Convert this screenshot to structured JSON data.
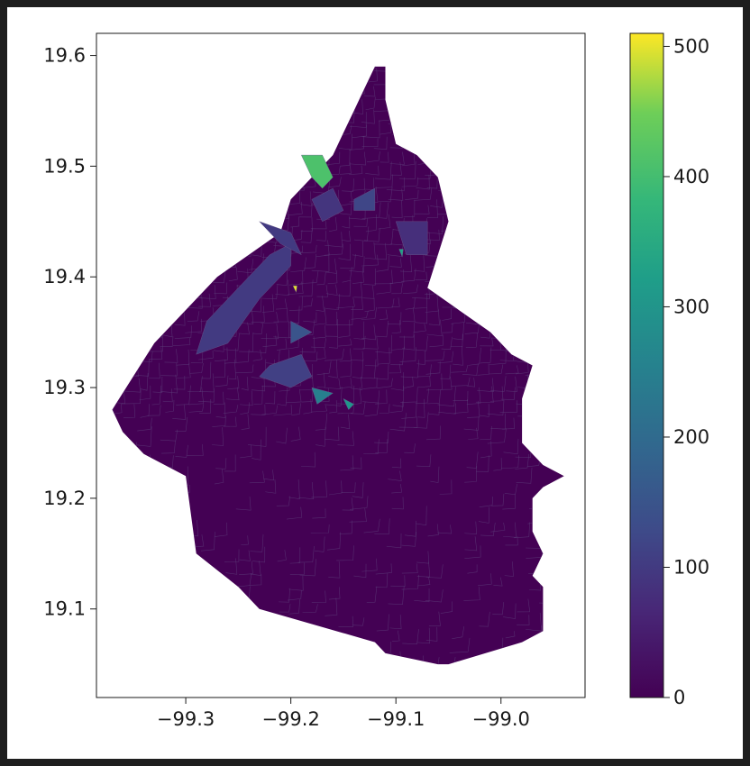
{
  "chart_data": {
    "type": "choropleth",
    "title": "",
    "xlabel": "",
    "ylabel": "",
    "xlim": [
      -99.385,
      -98.92
    ],
    "ylim": [
      19.02,
      19.62
    ],
    "x_ticks": [
      -99.3,
      -99.2,
      -99.1,
      -99.0
    ],
    "x_tick_labels": [
      "−99.3",
      "−99.2",
      "−99.1",
      "−99.0"
    ],
    "y_ticks": [
      19.1,
      19.2,
      19.3,
      19.4,
      19.5,
      19.6
    ],
    "y_tick_labels": [
      "19.1",
      "19.2",
      "19.3",
      "19.4",
      "19.5",
      "19.6"
    ],
    "grid": false,
    "colormap": "viridis",
    "colorbar": {
      "range": [
        0,
        510
      ],
      "ticks": [
        0,
        100,
        200,
        300,
        400,
        500
      ],
      "tick_labels": [
        "0",
        "100",
        "200",
        "300",
        "400",
        "500"
      ]
    },
    "outline": [
      [
        -99.12,
        19.59
      ],
      [
        -99.11,
        19.59
      ],
      [
        -99.11,
        19.56
      ],
      [
        -99.1,
        19.52
      ],
      [
        -99.08,
        19.51
      ],
      [
        -99.06,
        19.49
      ],
      [
        -99.05,
        19.45
      ],
      [
        -99.06,
        19.42
      ],
      [
        -99.07,
        19.39
      ],
      [
        -99.04,
        19.37
      ],
      [
        -99.01,
        19.35
      ],
      [
        -98.99,
        19.33
      ],
      [
        -98.97,
        19.32
      ],
      [
        -98.98,
        19.29
      ],
      [
        -98.98,
        19.25
      ],
      [
        -98.96,
        19.23
      ],
      [
        -98.94,
        19.22
      ],
      [
        -98.96,
        19.21
      ],
      [
        -98.97,
        19.2
      ],
      [
        -98.97,
        19.17
      ],
      [
        -98.96,
        19.15
      ],
      [
        -98.97,
        19.13
      ],
      [
        -98.96,
        19.12
      ],
      [
        -98.96,
        19.08
      ],
      [
        -98.98,
        19.07
      ],
      [
        -99.05,
        19.05
      ],
      [
        -99.06,
        19.05
      ],
      [
        -99.11,
        19.06
      ],
      [
        -99.12,
        19.07
      ],
      [
        -99.23,
        19.1
      ],
      [
        -99.25,
        19.12
      ],
      [
        -99.29,
        19.15
      ],
      [
        -99.3,
        19.22
      ],
      [
        -99.34,
        19.24
      ],
      [
        -99.36,
        19.26
      ],
      [
        -99.37,
        19.28
      ],
      [
        -99.35,
        19.31
      ],
      [
        -99.33,
        19.34
      ],
      [
        -99.31,
        19.36
      ],
      [
        -99.29,
        19.38
      ],
      [
        -99.27,
        19.4
      ],
      [
        -99.24,
        19.42
      ],
      [
        -99.21,
        19.44
      ],
      [
        -99.2,
        19.47
      ],
      [
        -99.18,
        19.49
      ],
      [
        -99.16,
        19.51
      ],
      [
        -99.15,
        19.53
      ],
      [
        -99.14,
        19.55
      ],
      [
        -99.13,
        19.57
      ]
    ],
    "regions": [
      {
        "value": 100,
        "points": [
          [
            -99.28,
            19.36
          ],
          [
            -99.24,
            19.4
          ],
          [
            -99.22,
            19.42
          ],
          [
            -99.2,
            19.43
          ],
          [
            -99.2,
            19.41
          ],
          [
            -99.23,
            19.38
          ],
          [
            -99.26,
            19.34
          ],
          [
            -99.29,
            19.33
          ]
        ]
      },
      {
        "value": 100,
        "points": [
          [
            -99.23,
            19.45
          ],
          [
            -99.2,
            19.44
          ],
          [
            -99.19,
            19.42
          ],
          [
            -99.21,
            19.43
          ]
        ]
      },
      {
        "value": 110,
        "points": [
          [
            -99.22,
            19.32
          ],
          [
            -99.19,
            19.33
          ],
          [
            -99.18,
            19.31
          ],
          [
            -99.2,
            19.3
          ],
          [
            -99.23,
            19.31
          ]
        ]
      },
      {
        "value": 90,
        "points": [
          [
            -99.18,
            19.47
          ],
          [
            -99.16,
            19.48
          ],
          [
            -99.15,
            19.46
          ],
          [
            -99.17,
            19.45
          ]
        ]
      },
      {
        "value": 80,
        "points": [
          [
            -99.1,
            19.45
          ],
          [
            -99.07,
            19.45
          ],
          [
            -99.07,
            19.42
          ],
          [
            -99.09,
            19.42
          ]
        ]
      },
      {
        "value": 120,
        "points": [
          [
            -99.14,
            19.47
          ],
          [
            -99.12,
            19.48
          ],
          [
            -99.12,
            19.46
          ],
          [
            -99.14,
            19.46
          ]
        ]
      },
      {
        "value": 150,
        "points": [
          [
            -99.2,
            19.36
          ],
          [
            -99.18,
            19.35
          ],
          [
            -99.2,
            19.34
          ]
        ]
      },
      {
        "value": 250,
        "points": [
          [
            -99.18,
            19.3
          ],
          [
            -99.16,
            19.295
          ],
          [
            -99.175,
            19.285
          ]
        ]
      },
      {
        "value": 300,
        "points": [
          [
            -99.15,
            19.29
          ],
          [
            -99.14,
            19.285
          ],
          [
            -99.145,
            19.28
          ]
        ]
      },
      {
        "value": 330,
        "points": [
          [
            -99.097,
            19.425
          ],
          [
            -99.093,
            19.425
          ],
          [
            -99.094,
            19.418
          ]
        ]
      },
      {
        "value": 410,
        "points": [
          [
            -99.19,
            19.51
          ],
          [
            -99.17,
            19.51
          ],
          [
            -99.16,
            19.49
          ],
          [
            -99.17,
            19.48
          ],
          [
            -99.18,
            19.49
          ]
        ]
      },
      {
        "value": 500,
        "points": [
          [
            -99.198,
            19.392
          ],
          [
            -99.194,
            19.392
          ],
          [
            -99.195,
            19.386
          ]
        ]
      }
    ]
  }
}
